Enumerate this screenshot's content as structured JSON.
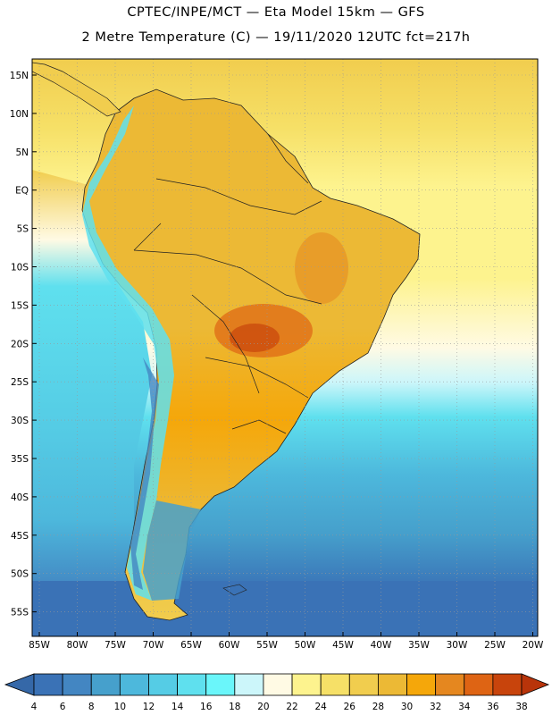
{
  "title": {
    "line1": "CPTEC/INPE/MCT —  Eta Model 15km — GFS",
    "line2": "2 Metre Temperature (C) — 19/11/2020 12UTC fct=217h"
  },
  "lat_labels": [
    "15N",
    "10N",
    "5N",
    "EQ",
    "5S",
    "10S",
    "15S",
    "20S",
    "25S",
    "30S",
    "35S",
    "40S",
    "45S",
    "50S",
    "55S"
  ],
  "lon_labels": [
    "85W",
    "80W",
    "75W",
    "70W",
    "65W",
    "60W",
    "55W",
    "50W",
    "45W",
    "40W",
    "35W",
    "30W",
    "25W",
    "20W"
  ],
  "colorbar": {
    "ticks": [
      "4",
      "6",
      "8",
      "10",
      "12",
      "14",
      "16",
      "18",
      "20",
      "22",
      "24",
      "26",
      "28",
      "30",
      "32",
      "34",
      "36",
      "38"
    ],
    "colors": [
      "#3a72b6",
      "#4386c2",
      "#46a0cc",
      "#4db8dc",
      "#55cce5",
      "#5fe0ee",
      "#6af6fa",
      "#ccf6fa",
      "#fffae4",
      "#fdf38e",
      "#f6e067",
      "#f1cd4e",
      "#ecb935",
      "#f5a70a",
      "#e5871f",
      "#de6414",
      "#c8440c",
      "#b8340a"
    ],
    "left_arrow_color": "#3568a8",
    "right_arrow_color": "#b8340a"
  },
  "map_colors": {
    "ocean_south": "#3a72b6",
    "ocean_mid": "#4db8dc",
    "ocean_warm": "#fdf38e",
    "land_warm": "#f1cd4e",
    "land_hot": "#ecb935",
    "land_hottest": "#de6414",
    "andes": "#6af6fa"
  }
}
